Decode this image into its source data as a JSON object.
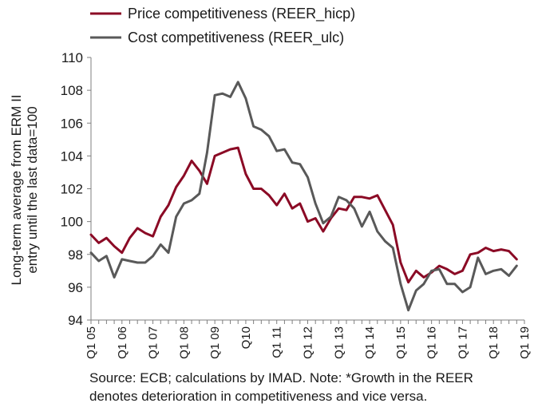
{
  "chart_data": {
    "type": "line",
    "ylabel_lines": [
      "Long-term average from ERM II",
      "entry until the last data=100"
    ],
    "ylim": [
      94,
      110
    ],
    "yticks": [
      94,
      96,
      98,
      100,
      102,
      104,
      106,
      108,
      110
    ],
    "x_start": "2005Q1",
    "x_tick_labels": [
      "Q1 05",
      "Q1 06",
      "Q1 07",
      "Q1 08",
      "Q1 09",
      "Q10",
      "Q1 11",
      "Q1 12",
      "Q1 13",
      "Q1 14",
      "Q1 15",
      "Q1 16",
      "Q1 17",
      "Q1 18",
      "Q1 19"
    ],
    "grid": false,
    "legend_position": "top",
    "series": [
      {
        "name": "Price competitiveness (REER_hicp)",
        "color": "#8b0a25",
        "values": [
          99.2,
          98.7,
          99.0,
          98.5,
          98.1,
          99.0,
          99.6,
          99.3,
          99.1,
          100.3,
          101.0,
          102.1,
          102.8,
          103.7,
          103.1,
          102.3,
          104.0,
          104.2,
          104.4,
          104.5,
          102.9,
          102.0,
          102.0,
          101.6,
          101.0,
          101.7,
          100.8,
          101.1,
          100.0,
          100.2,
          99.4,
          100.2,
          100.8,
          100.7,
          101.5,
          101.5,
          101.4,
          101.6,
          100.7,
          99.8,
          97.5,
          96.3,
          97.0,
          96.6,
          96.9,
          97.3,
          97.1,
          96.8,
          97.0,
          98.0,
          98.1,
          98.4,
          98.2,
          98.3,
          98.2,
          97.7
        ]
      },
      {
        "name": "Cost competitiveness (REER_ulc)",
        "color": "#595959",
        "values": [
          98.1,
          97.6,
          97.9,
          96.6,
          97.7,
          97.6,
          97.5,
          97.5,
          97.9,
          98.6,
          98.1,
          100.3,
          101.1,
          101.3,
          101.7,
          104.2,
          107.7,
          107.8,
          107.6,
          108.5,
          107.5,
          105.8,
          105.6,
          105.2,
          104.3,
          104.4,
          103.6,
          103.5,
          102.7,
          101.1,
          99.9,
          100.3,
          101.5,
          101.3,
          100.8,
          99.7,
          100.6,
          99.4,
          98.8,
          98.4,
          96.2,
          94.6,
          95.8,
          96.2,
          97.0,
          97.1,
          96.2,
          96.2,
          95.7,
          96.0,
          97.8,
          96.8,
          97.0,
          97.1,
          96.7,
          97.3
        ]
      }
    ]
  },
  "source_lines": [
    "Source: ECB; calculations by IMAD. Note: *Growth in the REER",
    "denotes deterioration in competitiveness and vice versa."
  ]
}
